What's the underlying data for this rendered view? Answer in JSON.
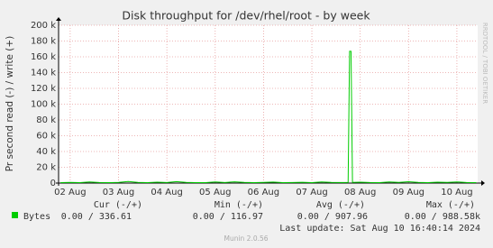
{
  "chart_data": {
    "type": "line",
    "title": "Disk throughput for /dev/rhel/root - by week",
    "y_label": "Pr second read (-) / write (+)",
    "watermark": "RRDTOOL / TOBI OETIKER",
    "x": [
      1.8,
      2.0,
      2.2,
      2.4,
      2.6,
      2.8,
      3.0,
      3.2,
      3.4,
      3.6,
      3.8,
      4.0,
      4.2,
      4.4,
      4.6,
      4.8,
      5.0,
      5.2,
      5.4,
      5.6,
      5.8,
      6.0,
      6.2,
      6.4,
      6.6,
      6.8,
      7.0,
      7.2,
      7.4,
      7.6,
      7.75,
      7.78,
      7.81,
      7.84,
      8.0,
      8.2,
      8.4,
      8.6,
      8.8,
      9.0,
      9.2,
      9.4,
      9.6,
      9.8,
      10.0,
      10.2,
      10.4
    ],
    "series": [
      {
        "name": "Bytes",
        "color": "#00cc00",
        "values": [
          500,
          800,
          600,
          1500,
          700,
          500,
          900,
          2000,
          800,
          600,
          1200,
          700,
          1800,
          900,
          600,
          500,
          1400,
          700,
          1600,
          800,
          500,
          900,
          1300,
          600,
          700,
          1000,
          600,
          1500,
          800,
          700,
          800,
          167000,
          167000,
          900,
          1200,
          700,
          600,
          1400,
          800,
          1700,
          900,
          600,
          1100,
          800,
          1500,
          700,
          600
        ]
      }
    ],
    "xlim": [
      1.76,
      10.43
    ],
    "xticks": [
      {
        "value": 2,
        "label": "02 Aug"
      },
      {
        "value": 3,
        "label": "03 Aug"
      },
      {
        "value": 4,
        "label": "04 Aug"
      },
      {
        "value": 5,
        "label": "05 Aug"
      },
      {
        "value": 6,
        "label": "06 Aug"
      },
      {
        "value": 7,
        "label": "07 Aug"
      },
      {
        "value": 8,
        "label": "08 Aug"
      },
      {
        "value": 9,
        "label": "09 Aug"
      },
      {
        "value": 10,
        "label": "10 Aug"
      }
    ],
    "ylim": [
      0,
      200000
    ],
    "yticks": [
      0,
      {
        "value": 20000,
        "label": "20 k"
      },
      {
        "value": 40000,
        "label": "40 k"
      },
      {
        "value": 60000,
        "label": "60 k"
      },
      {
        "value": 80000,
        "label": "80 k"
      },
      {
        "value": 100000,
        "label": "100 k"
      },
      {
        "value": 120000,
        "label": "120 k"
      },
      {
        "value": 140000,
        "label": "140 k"
      },
      {
        "value": 160000,
        "label": "160 k"
      },
      {
        "value": 180000,
        "label": "180 k"
      },
      {
        "value": 200000,
        "label": "200 k"
      }
    ],
    "grid": true,
    "stats": {
      "headers": [
        "Cur (-/+)",
        "Min (-/+)",
        "Avg (-/+)",
        "Max (-/+)"
      ],
      "values": [
        "0.00 / 336.61",
        "0.00 / 116.97",
        "0.00 / 907.96",
        "0.00 / 988.58k"
      ]
    },
    "last_update": "Last update: Sat Aug 10 16:40:14 2024",
    "footer": "Munin 2.0.56"
  }
}
